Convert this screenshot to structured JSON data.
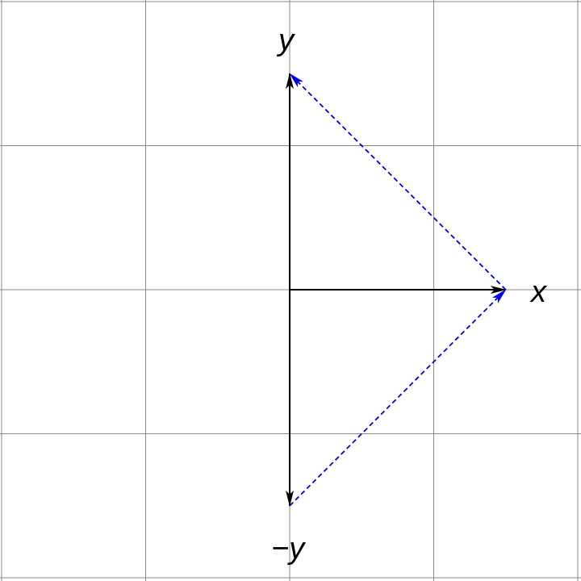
{
  "labels": {
    "x": "x",
    "y": "y",
    "neg_y": "−y"
  },
  "colors": {
    "grid": "#888888",
    "axis": "#000000",
    "dashed_vector": "#0000ee",
    "background": "#ffffff"
  },
  "vectors": [
    {
      "name": "x",
      "from": [
        0,
        0
      ],
      "to": [
        1.5,
        0
      ],
      "style": "solid",
      "color": "#000000"
    },
    {
      "name": "y",
      "from": [
        0,
        0
      ],
      "to": [
        0,
        1.5
      ],
      "style": "solid",
      "color": "#000000"
    },
    {
      "name": "-y",
      "from": [
        0,
        0
      ],
      "to": [
        0,
        -1.5
      ],
      "style": "solid",
      "color": "#000000"
    },
    {
      "name": "x-to-y",
      "from": [
        1.5,
        0
      ],
      "to": [
        0,
        1.5
      ],
      "style": "dashed",
      "color": "#0000ee"
    },
    {
      "name": "neg-y-to-x",
      "from": [
        0,
        -1.5
      ],
      "to": [
        1.5,
        0
      ],
      "style": "dashed",
      "color": "#0000ee"
    }
  ],
  "grid": {
    "x_range": [
      -2,
      2
    ],
    "y_range": [
      -2,
      2
    ],
    "step": 1
  }
}
